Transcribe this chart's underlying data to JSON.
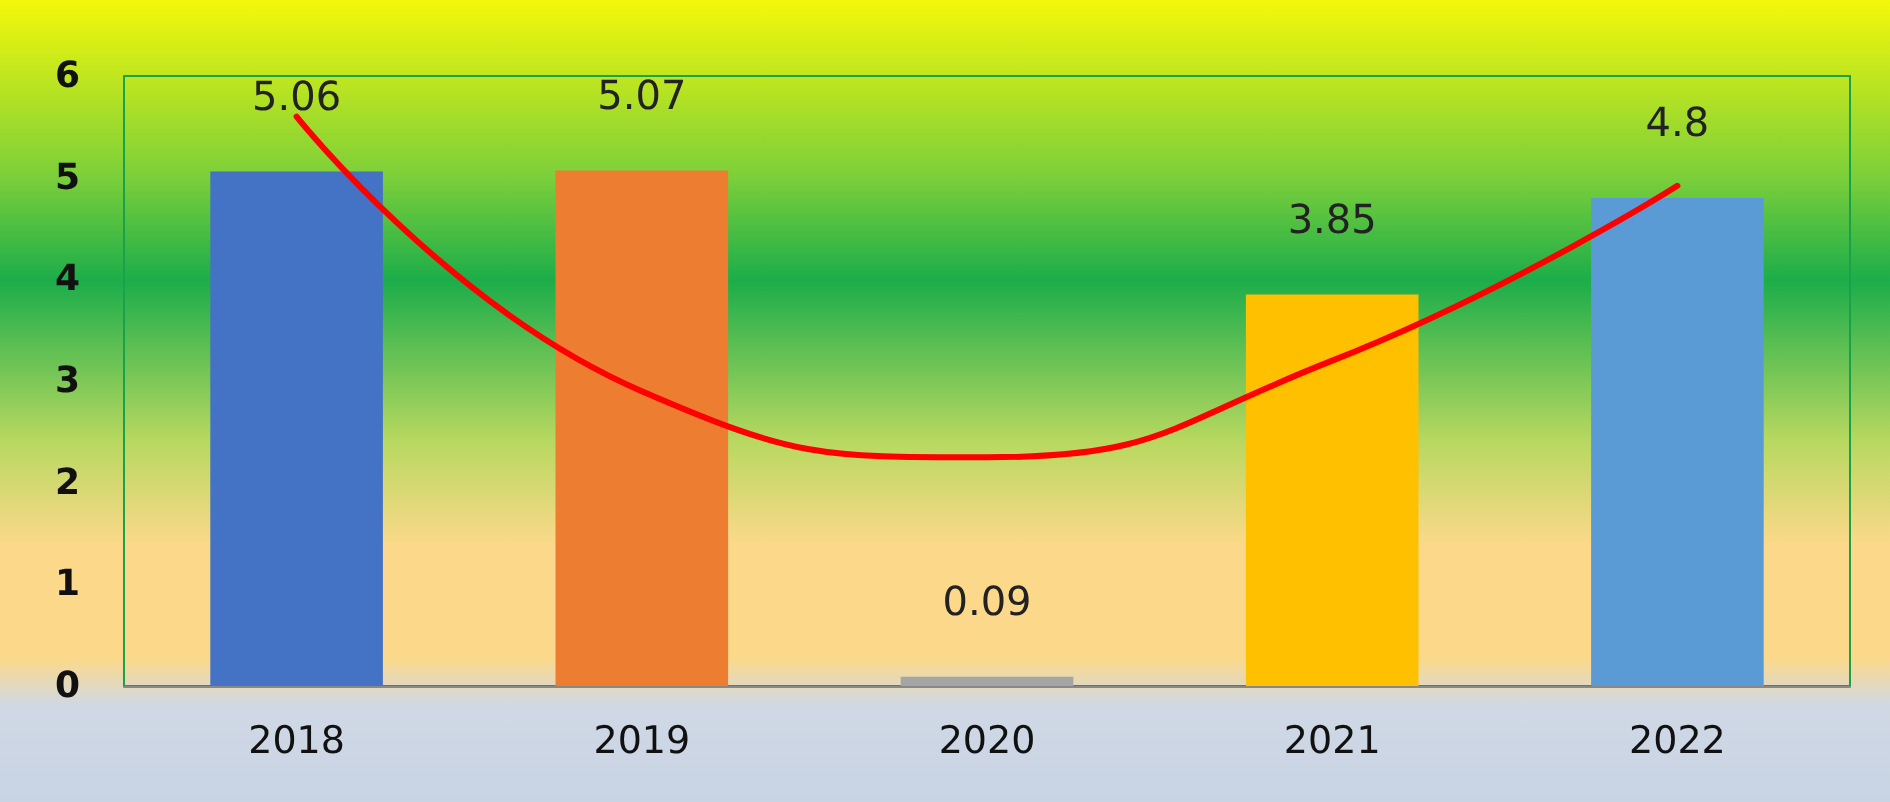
{
  "chart_data": {
    "type": "bar",
    "categories": [
      "2018",
      "2019",
      "2020",
      "2021",
      "2022"
    ],
    "series": [
      {
        "values": [
          5.06,
          5.07,
          0.09,
          3.85,
          4.8
        ],
        "value_labels": [
          "5.06",
          "5.07",
          "0.09",
          "3.85",
          "4.8"
        ],
        "colors": [
          "#4472c4",
          "#ed7d31",
          "#a5a5a5",
          "#ffc000",
          "#5b9bd5"
        ]
      },
      {
        "type": "line",
        "values": [
          5.6,
          2.9,
          2.25,
          3.2,
          4.92
        ],
        "color": "#ff0000",
        "marker": "none"
      }
    ],
    "ylim": [
      0,
      6
    ],
    "yticks": [
      0,
      1,
      2,
      3,
      4,
      5,
      6
    ],
    "grid": false
  }
}
